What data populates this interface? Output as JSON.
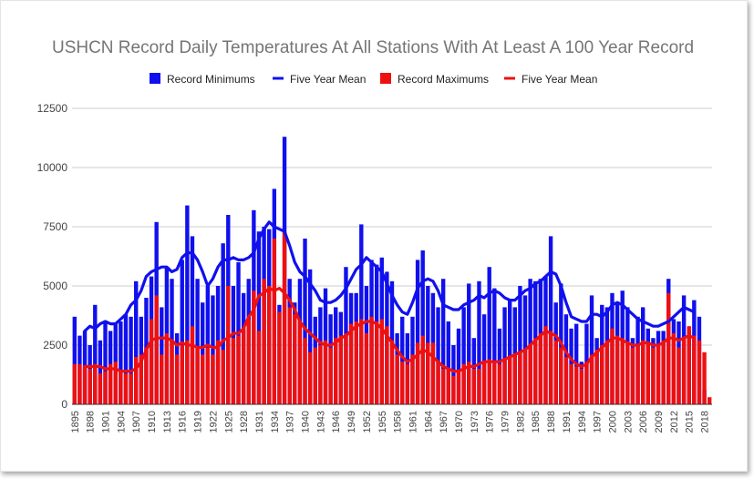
{
  "chart_data": {
    "type": "bar",
    "title": "USHCN Record Daily Temperatures At All Stations With At Least A 100 Year Record",
    "ylim": [
      0,
      12500
    ],
    "y_ticks": [
      "0",
      "2500",
      "5000",
      "7500",
      "10000",
      "12500"
    ],
    "x_tick_labels": [
      "1895",
      "1898",
      "1901",
      "1904",
      "1907",
      "1910",
      "1913",
      "1916",
      "1919",
      "1922",
      "1925",
      "1928",
      "1931",
      "1934",
      "1937",
      "1940",
      "1943",
      "1946",
      "1949",
      "1952",
      "1955",
      "1958",
      "1961",
      "1964",
      "1967",
      "1970",
      "1973",
      "1976",
      "1979",
      "1982",
      "1985",
      "1988",
      "1991",
      "1994",
      "1997",
      "2000",
      "2003",
      "2006",
      "2009",
      "2012",
      "2015",
      "2018"
    ],
    "x": [
      1895,
      1896,
      1897,
      1898,
      1899,
      1900,
      1901,
      1902,
      1903,
      1904,
      1905,
      1906,
      1907,
      1908,
      1909,
      1910,
      1911,
      1912,
      1913,
      1914,
      1915,
      1916,
      1917,
      1918,
      1919,
      1920,
      1921,
      1922,
      1923,
      1924,
      1925,
      1926,
      1927,
      1928,
      1929,
      1930,
      1931,
      1932,
      1933,
      1934,
      1935,
      1936,
      1937,
      1938,
      1939,
      1940,
      1941,
      1942,
      1943,
      1944,
      1945,
      1946,
      1947,
      1948,
      1949,
      1950,
      1951,
      1952,
      1953,
      1954,
      1955,
      1956,
      1957,
      1958,
      1959,
      1960,
      1961,
      1962,
      1963,
      1964,
      1965,
      1966,
      1967,
      1968,
      1969,
      1970,
      1971,
      1972,
      1973,
      1974,
      1975,
      1976,
      1977,
      1978,
      1979,
      1980,
      1981,
      1982,
      1983,
      1984,
      1985,
      1986,
      1987,
      1988,
      1989,
      1990,
      1991,
      1992,
      1993,
      1994,
      1995,
      1996,
      1997,
      1998,
      1999,
      2000,
      2001,
      2002,
      2003,
      2004,
      2005,
      2006,
      2007,
      2008,
      2009,
      2010,
      2011,
      2012,
      2013,
      2014,
      2015,
      2016,
      2017,
      2018,
      2019
    ],
    "series": [
      {
        "name": "Record Minimums",
        "kind": "bar",
        "color": "#1010ee",
        "values": [
          3700,
          2900,
          3100,
          2500,
          4200,
          2700,
          3500,
          3100,
          3400,
          3500,
          3800,
          3700,
          5200,
          3700,
          4500,
          5400,
          7700,
          4100,
          5800,
          5300,
          3000,
          6100,
          8400,
          7100,
          5300,
          4300,
          5000,
          4600,
          5000,
          6800,
          8000,
          5000,
          6000,
          4700,
          5300,
          8200,
          7300,
          7500,
          7400,
          9100,
          4200,
          11300,
          5300,
          4300,
          5300,
          7000,
          5700,
          3700,
          4100,
          4900,
          3800,
          4100,
          3900,
          5800,
          4700,
          4700,
          7600,
          5000,
          6100,
          5900,
          6200,
          5600,
          5200,
          3000,
          3700,
          3000,
          3700,
          6100,
          6500,
          5000,
          4700,
          4100,
          5300,
          3500,
          2500,
          3200,
          4100,
          5100,
          2800,
          5200,
          3800,
          5800,
          4900,
          3200,
          4100,
          4400,
          4100,
          5000,
          4600,
          5300,
          5200,
          5300,
          5400,
          7100,
          4300,
          5100,
          3800,
          3200,
          3400,
          1800,
          3400,
          4600,
          2800,
          4200,
          4100,
          4700,
          4300,
          4800,
          4100,
          2800,
          3700,
          4100,
          3200,
          2800,
          3100,
          3100,
          5300,
          3600,
          3500,
          4600,
          3100,
          4400,
          3700,
          600,
          0
        ]
      },
      {
        "name": "Record Maximums",
        "kind": "bar",
        "color": "#ee1010",
        "values": [
          1700,
          1700,
          1600,
          1500,
          1700,
          1300,
          1400,
          1700,
          1800,
          1400,
          1300,
          1300,
          2000,
          2100,
          2400,
          3600,
          4600,
          2100,
          3000,
          2700,
          2100,
          2500,
          2700,
          3300,
          2400,
          2100,
          2400,
          2100,
          2700,
          2300,
          5000,
          2800,
          2900,
          3200,
          3600,
          4800,
          3100,
          5300,
          5000,
          7000,
          3900,
          7300,
          4100,
          3800,
          3500,
          2800,
          2200,
          2400,
          2500,
          2700,
          2400,
          2800,
          2900,
          3000,
          3400,
          3500,
          3600,
          3000,
          3700,
          3500,
          3600,
          3300,
          2700,
          2100,
          1800,
          1700,
          2100,
          2600,
          2900,
          2600,
          2600,
          1800,
          1500,
          1500,
          1200,
          1400,
          1700,
          1800,
          1500,
          1500,
          1800,
          1900,
          1800,
          1700,
          1900,
          2000,
          2100,
          2200,
          2300,
          2500,
          2800,
          3000,
          3300,
          3100,
          2700,
          2400,
          2000,
          1700,
          1600,
          1500,
          1800,
          2100,
          2300,
          2500,
          2700,
          3200,
          2900,
          2800,
          2600,
          2400,
          2500,
          2700,
          2600,
          2400,
          2500,
          2700,
          4700,
          3000,
          2400,
          2800,
          3300,
          2900,
          2700,
          2200,
          300
        ]
      },
      {
        "name": "Five Year Mean",
        "kind": "line",
        "of": "Record Minimums",
        "color": "#1010ee",
        "values": [
          null,
          null,
          3100,
          3300,
          3200,
          3400,
          3500,
          3400,
          3400,
          3600,
          3800,
          4200,
          4400,
          4800,
          5400,
          5600,
          5700,
          5800,
          5800,
          5600,
          5700,
          6200,
          6400,
          6400,
          6100,
          5600,
          5000,
          5300,
          5800,
          6100,
          6100,
          6200,
          6100,
          6100,
          6200,
          6400,
          7000,
          7400,
          7700,
          7500,
          7400,
          7300,
          6700,
          6000,
          5600,
          5400,
          5100,
          4800,
          4400,
          4300,
          4300,
          4400,
          4600,
          4900,
          5300,
          5700,
          5900,
          6200,
          6000,
          5800,
          5600,
          5100,
          4600,
          4200,
          3900,
          3800,
          4300,
          4900,
          5200,
          5300,
          5200,
          4800,
          4200,
          4100,
          4000,
          4000,
          4200,
          4300,
          4400,
          4600,
          4500,
          4700,
          4800,
          4700,
          4500,
          4400,
          4400,
          4600,
          4800,
          4900,
          5100,
          5200,
          5400,
          5600,
          5500,
          5000,
          4300,
          3700,
          3600,
          3500,
          3500,
          3800,
          3800,
          3700,
          3900,
          4200,
          4300,
          4200,
          4000,
          3800,
          3600,
          3500,
          3400,
          3300,
          3300,
          3400,
          3500,
          3700,
          3900,
          4100,
          4000,
          3900,
          null,
          null,
          null
        ]
      },
      {
        "name": "Five Year Mean",
        "kind": "line",
        "of": "Record Maximums",
        "color": "#ee1010",
        "values": [
          null,
          null,
          1600,
          1600,
          1600,
          1600,
          1500,
          1500,
          1500,
          1400,
          1400,
          1400,
          1500,
          1800,
          2300,
          2700,
          2800,
          2800,
          2800,
          2700,
          2500,
          2600,
          2500,
          2500,
          2400,
          2400,
          2500,
          2400,
          2400,
          2700,
          2800,
          3000,
          3000,
          3200,
          3700,
          4000,
          4600,
          4700,
          4900,
          4800,
          4900,
          4700,
          4400,
          4000,
          3500,
          3200,
          3000,
          2800,
          2600,
          2500,
          2500,
          2600,
          2800,
          2900,
          3100,
          3300,
          3400,
          3500,
          3500,
          3400,
          3200,
          2900,
          2600,
          2300,
          2000,
          1800,
          1900,
          2100,
          2300,
          2200,
          2000,
          1800,
          1600,
          1500,
          1400,
          1400,
          1500,
          1600,
          1600,
          1700,
          1800,
          1800,
          1800,
          1800,
          1900,
          2000,
          2100,
          2200,
          2300,
          2500,
          2700,
          2900,
          3100,
          3000,
          2900,
          2600,
          2200,
          1900,
          1700,
          1600,
          1700,
          2000,
          2200,
          2400,
          2600,
          2800,
          2800,
          2700,
          2600,
          2500,
          2500,
          2600,
          2600,
          2500,
          2500,
          2600,
          2800,
          2800,
          2700,
          2800,
          2900,
          2800,
          null,
          null,
          null
        ]
      }
    ],
    "legend": {
      "position": "top",
      "items": [
        {
          "label": "Record Minimums",
          "marker": "box",
          "color": "#1010ee"
        },
        {
          "label": "Five Year Mean",
          "marker": "line",
          "color": "#1010ee"
        },
        {
          "label": "Record Maximums",
          "marker": "box",
          "color": "#ee1010"
        },
        {
          "label": "Five Year Mean",
          "marker": "line",
          "color": "#ee1010"
        }
      ]
    },
    "grid": "horizontal",
    "gridline_color": "#cccccc"
  }
}
